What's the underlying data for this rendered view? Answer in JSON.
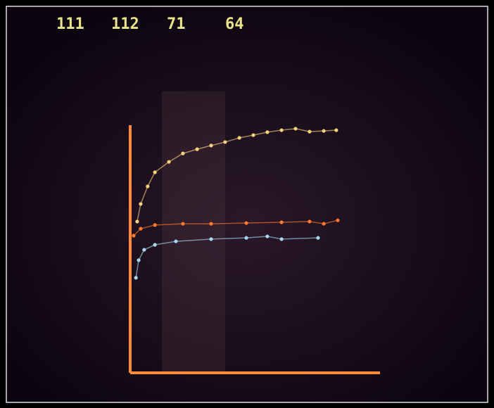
{
  "chart_data": {
    "type": "line",
    "readouts": [
      111,
      112,
      71,
      64
    ],
    "xlim": [
      0,
      100
    ],
    "ylim": [
      0,
      100
    ],
    "axis_color": "#ff8a3a",
    "series": [
      {
        "color": "#f7d27e",
        "x": [
          2.8,
          4.2,
          7.0,
          9.9,
          15.5,
          21.1,
          26.8,
          32.4,
          38.0,
          43.7,
          49.3,
          54.9,
          60.6,
          66.2,
          71.8,
          77.5,
          82.5
        ],
        "values": [
          61.1,
          68.2,
          75.3,
          81.0,
          85.2,
          88.6,
          90.3,
          91.8,
          93.2,
          94.9,
          96.0,
          97.2,
          98.0,
          98.6,
          97.4,
          97.7,
          98.0
        ]
      },
      {
        "color": "#ff7a30",
        "x": [
          1.4,
          4.2,
          9.9,
          21.1,
          32.4,
          46.5,
          60.6,
          71.8,
          77.5,
          83.1
        ],
        "values": [
          55.4,
          58.2,
          59.7,
          60.2,
          60.2,
          60.5,
          60.8,
          61.1,
          60.2,
          61.6
        ]
      },
      {
        "color": "#a8d8f0",
        "x": [
          2.3,
          3.4,
          5.6,
          9.9,
          18.3,
          32.4,
          46.5,
          54.9,
          60.6,
          75.2
        ],
        "values": [
          38.4,
          45.5,
          49.7,
          51.7,
          53.1,
          54.0,
          54.5,
          55.1,
          54.0,
          54.5
        ]
      }
    ]
  }
}
